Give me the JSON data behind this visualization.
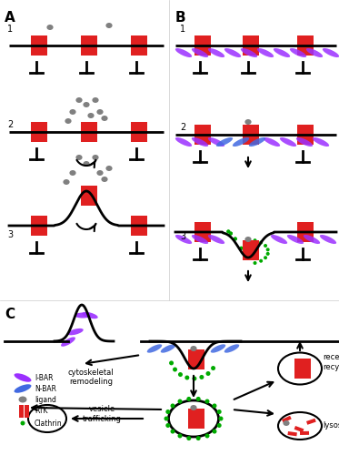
{
  "fig_width": 3.73,
  "fig_height": 5.0,
  "dpi": 100,
  "bg_color": "#ffffff",
  "membrane_color": "#000000",
  "rtk_color": "#e02020",
  "ligand_color": "#808080",
  "ibar_color": "#9b30ff",
  "nbar_color": "#4169e1",
  "clathrin_color": "#00aa00",
  "arrow_color": "#000000",
  "label_A": "A",
  "label_B": "B",
  "label_C": "C",
  "panel_labels": [
    "1",
    "2",
    "3"
  ]
}
